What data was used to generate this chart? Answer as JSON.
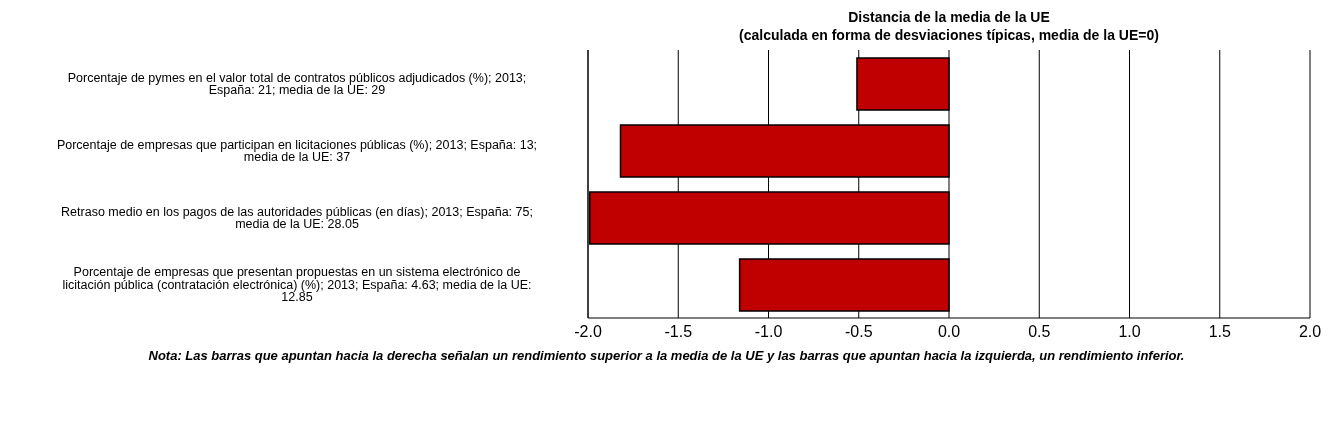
{
  "chart_data": {
    "type": "bar",
    "orientation": "horizontal",
    "title": "Distancia de la media de la UE",
    "subtitle": "(calculada en forma de desviaciones típicas, media de la UE=0)",
    "categories": [
      "Porcentaje de pymes en el valor total de contratos públicos adjudicados (%); 2013; España: 21; media de la UE: 29",
      "Porcentaje de empresas que participan en licitaciones públicas (%); 2013; España: 13; media de la UE: 37",
      "Retraso medio en los pagos de las autoridades públicas (en días); 2013; España: 75; media de la UE: 28.05",
      "Porcentaje de empresas que presentan propuestas en un sistema electrónico de licitación pública (contratación electrónica) (%); 2013; España: 4.63; media de la UE: 12.85"
    ],
    "values": [
      -0.51,
      -1.82,
      -1.99,
      -1.16
    ],
    "color": "#c00000",
    "xlim": [
      -2.0,
      2.0
    ],
    "xticks": [
      {
        "value": -2,
        "label": "-2.0"
      },
      {
        "value": -1.5,
        "label": "-1.5"
      },
      {
        "value": -1,
        "label": "-1.0"
      },
      {
        "value": -0.5,
        "label": "-0.5"
      },
      {
        "value": 0,
        "label": "0.0"
      },
      {
        "value": 0.5,
        "label": "0.5"
      },
      {
        "value": 1,
        "label": "1.0"
      },
      {
        "value": 1.5,
        "label": "1.5"
      },
      {
        "value": 2,
        "label": "2.0"
      }
    ],
    "grid": "x",
    "legend": false,
    "annotations": [
      "Nota: Las barras que apuntan hacia la derecha señalan un rendimiento superior a la media de la UE y las barras que apuntan hacia la izquierda, un rendimiento inferior."
    ]
  }
}
